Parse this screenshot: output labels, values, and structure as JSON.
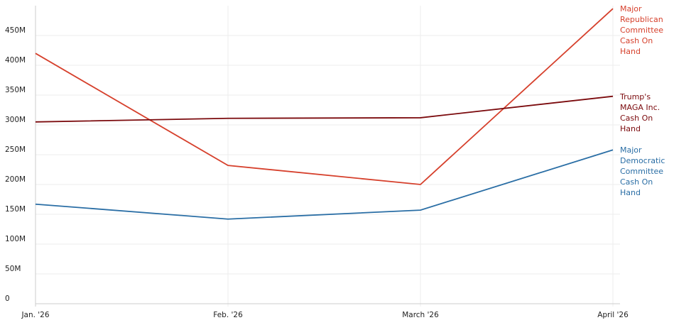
{
  "chart_data": {
    "type": "line",
    "categories": [
      "Jan. '26",
      "Feb. '26",
      "March '26",
      "April '26"
    ],
    "series": [
      {
        "name": "Major Republican Committee Cash On Hand",
        "color": "#d6402c",
        "values": [
          420,
          232,
          200,
          495
        ]
      },
      {
        "name": "Trump's MAGA Inc. Cash On Hand",
        "color": "#7b0a0d",
        "values": [
          305,
          311,
          312,
          348
        ]
      },
      {
        "name": "Major Democratic Committee Cash On Hand",
        "color": "#2a6ea5",
        "values": [
          167,
          142,
          157,
          258
        ]
      }
    ],
    "ylim": [
      0,
      500
    ],
    "yticks": [
      0,
      {
        "value": 50,
        "label": "50M"
      },
      {
        "value": 100,
        "label": "100M"
      },
      {
        "value": 150,
        "label": "150M"
      },
      {
        "value": 200,
        "label": "200M"
      },
      {
        "value": 250,
        "label": "250M"
      },
      {
        "value": 300,
        "label": "300M"
      },
      {
        "value": 350,
        "label": "350M"
      },
      {
        "value": 400,
        "label": "400M"
      },
      {
        "value": 450,
        "label": "450M"
      }
    ],
    "grid": true
  }
}
